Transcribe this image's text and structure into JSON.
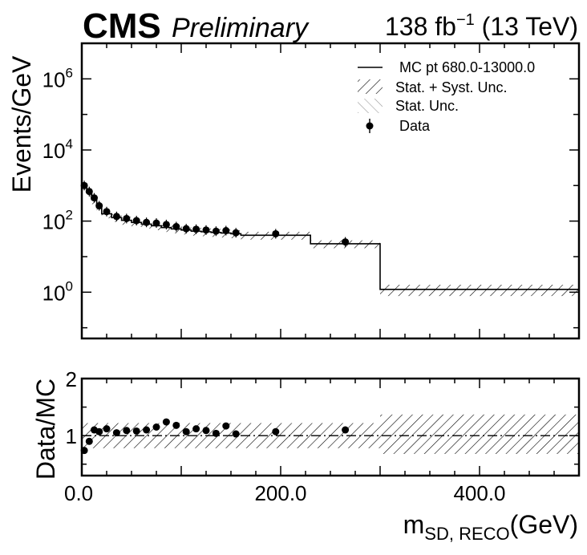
{
  "header": {
    "experiment": "CMS",
    "status": "Preliminary",
    "lumi_prefix": "138 fb",
    "lumi_exp": "−1",
    "lumi_suffix": " (13 TeV)"
  },
  "chart_data": [
    {
      "type": "histogram",
      "panel": "main",
      "ylabel": "Events/GeV",
      "yscale": "log",
      "ylim": [
        0.05,
        10000000
      ],
      "xlim": [
        0,
        500
      ],
      "yticks": [
        {
          "base": "10",
          "exp": "0",
          "value": 1
        },
        {
          "base": "10",
          "exp": "2",
          "value": 100
        },
        {
          "base": "10",
          "exp": "4",
          "value": 10000
        },
        {
          "base": "10",
          "exp": "6",
          "value": 1000000
        }
      ],
      "legend_position": "top-right",
      "legend": [
        {
          "kind": "line",
          "label": "MC  pt 680.0-13000.0"
        },
        {
          "kind": "hatch-black",
          "label": "Stat. + Syst. Unc."
        },
        {
          "kind": "hatch-gray",
          "label": "Stat. Unc."
        },
        {
          "kind": "marker",
          "label": "Data"
        }
      ],
      "mc_bins": [
        {
          "lo": 0,
          "hi": 5,
          "y": 1000
        },
        {
          "lo": 5,
          "hi": 10,
          "y": 650
        },
        {
          "lo": 10,
          "hi": 15,
          "y": 400
        },
        {
          "lo": 15,
          "hi": 20,
          "y": 240
        },
        {
          "lo": 20,
          "hi": 30,
          "y": 160
        },
        {
          "lo": 30,
          "hi": 40,
          "y": 125
        },
        {
          "lo": 40,
          "hi": 50,
          "y": 105
        },
        {
          "lo": 50,
          "hi": 60,
          "y": 92
        },
        {
          "lo": 60,
          "hi": 70,
          "y": 82
        },
        {
          "lo": 70,
          "hi": 80,
          "y": 74
        },
        {
          "lo": 80,
          "hi": 90,
          "y": 66
        },
        {
          "lo": 90,
          "hi": 100,
          "y": 60
        },
        {
          "lo": 100,
          "hi": 110,
          "y": 56
        },
        {
          "lo": 110,
          "hi": 120,
          "y": 52
        },
        {
          "lo": 120,
          "hi": 130,
          "y": 50
        },
        {
          "lo": 130,
          "hi": 140,
          "y": 48
        },
        {
          "lo": 140,
          "hi": 150,
          "y": 46
        },
        {
          "lo": 150,
          "hi": 160,
          "y": 44
        },
        {
          "lo": 160,
          "hi": 230,
          "y": 40
        },
        {
          "lo": 230,
          "hi": 300,
          "y": 23
        },
        {
          "lo": 300,
          "hi": 500,
          "y": 1.2
        }
      ],
      "mc_unc_fraction": 0.25,
      "mc_unc_fraction_last": 0.35,
      "data": [
        {
          "x": 2.5,
          "y": 1000
        },
        {
          "x": 7.5,
          "y": 680
        },
        {
          "x": 12.5,
          "y": 450
        },
        {
          "x": 17.5,
          "y": 270
        },
        {
          "x": 25,
          "y": 185
        },
        {
          "x": 35,
          "y": 135
        },
        {
          "x": 45,
          "y": 118
        },
        {
          "x": 55,
          "y": 103
        },
        {
          "x": 65,
          "y": 92
        },
        {
          "x": 75,
          "y": 88
        },
        {
          "x": 85,
          "y": 80
        },
        {
          "x": 95,
          "y": 70
        },
        {
          "x": 105,
          "y": 61
        },
        {
          "x": 115,
          "y": 59
        },
        {
          "x": 125,
          "y": 56
        },
        {
          "x": 135,
          "y": 52
        },
        {
          "x": 145,
          "y": 54
        },
        {
          "x": 155,
          "y": 47
        },
        {
          "x": 195,
          "y": 44
        },
        {
          "x": 265,
          "y": 26
        }
      ]
    },
    {
      "type": "scatter",
      "panel": "ratio",
      "ylabel": "Data/MC",
      "xlabel_main": "m",
      "xlabel_sub": "SD, RECO",
      "xlabel_unit": "(GeV)",
      "ylim": [
        0.3,
        2
      ],
      "xlim": [
        0,
        500
      ],
      "xticks": [
        {
          "label": "0.0",
          "value": 0
        },
        {
          "label": "200.0",
          "value": 200
        },
        {
          "label": "400.0",
          "value": 400
        }
      ],
      "yticks": [
        {
          "label": "1",
          "value": 1
        },
        {
          "label": "2",
          "value": 2
        }
      ],
      "reference_line": 1,
      "band_lo": 0.78,
      "band_hi": 1.22,
      "band_last_lo": 0.68,
      "band_last_hi": 1.37,
      "data": [
        {
          "x": 2.5,
          "y": 0.74
        },
        {
          "x": 7.5,
          "y": 0.9
        },
        {
          "x": 12.5,
          "y": 1.1
        },
        {
          "x": 17.5,
          "y": 1.07
        },
        {
          "x": 25,
          "y": 1.12
        },
        {
          "x": 35,
          "y": 1.05
        },
        {
          "x": 45,
          "y": 1.09
        },
        {
          "x": 55,
          "y": 1.08
        },
        {
          "x": 65,
          "y": 1.1
        },
        {
          "x": 75,
          "y": 1.15
        },
        {
          "x": 85,
          "y": 1.24
        },
        {
          "x": 95,
          "y": 1.18
        },
        {
          "x": 105,
          "y": 1.07
        },
        {
          "x": 115,
          "y": 1.12
        },
        {
          "x": 125,
          "y": 1.09
        },
        {
          "x": 135,
          "y": 1.04
        },
        {
          "x": 145,
          "y": 1.17
        },
        {
          "x": 155,
          "y": 1.03
        },
        {
          "x": 195,
          "y": 1.07
        },
        {
          "x": 265,
          "y": 1.1
        }
      ]
    }
  ]
}
